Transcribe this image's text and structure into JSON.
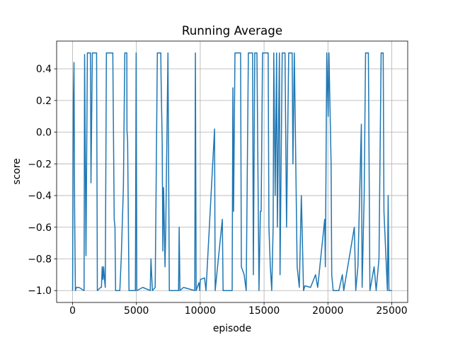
{
  "chart_data": {
    "type": "line",
    "title": "Running Average",
    "x_label": "episode",
    "y_label": "score",
    "x": [
      0,
      60,
      110,
      160,
      220,
      300,
      500,
      900,
      940,
      1050,
      1160,
      1400,
      1440,
      1550,
      1880,
      1940,
      2200,
      2260,
      2320,
      2380,
      2430,
      2500,
      2560,
      2650,
      3150,
      3260,
      3320,
      3370,
      3700,
      3810,
      3980,
      4090,
      4250,
      4260,
      4310,
      4420,
      4920,
      4980,
      5030,
      5500,
      6080,
      6140,
      6250,
      6470,
      6640,
      6910,
      6930,
      7020,
      7070,
      7130,
      7240,
      7300,
      7470,
      7580,
      8300,
      8350,
      8410,
      8690,
      9570,
      9620,
      9680,
      9900,
      9960,
      10010,
      10340,
      10450,
      11120,
      11170,
      11730,
      11790,
      12500,
      12555,
      12610,
      12720,
      13160,
      13220,
      13440,
      13600,
      13770,
      14100,
      14160,
      14270,
      14440,
      14600,
      14710,
      14770,
      14880,
      15320,
      15380,
      15490,
      15600,
      15710,
      15760,
      15870,
      15980,
      16040,
      16200,
      16250,
      16420,
      16640,
      16760,
      16930,
      17200,
      17260,
      17370,
      17590,
      17760,
      17920,
      18090,
      18200,
      18640,
      19030,
      19200,
      19750,
      19800,
      19910,
      20020,
      20080,
      20250,
      20300,
      20410,
      20860,
      21130,
      21240,
      22070,
      22180,
      22350,
      22620,
      22680,
      22840,
      22950,
      23170,
      23290,
      23620,
      23780,
      24000,
      24170,
      24330,
      24390,
      24660,
      24720,
      24780,
      25000
    ],
    "series": [
      {
        "color": "#1f77b4",
        "values": [
          -1,
          0.2,
          0.44,
          -0.5,
          -1,
          -0.98,
          -0.98,
          -1,
          0.49,
          -0.78,
          0.5,
          0.5,
          -0.32,
          0.5,
          0.5,
          -1,
          -0.98,
          -0.98,
          -0.85,
          -0.93,
          -0.85,
          -0.93,
          -0.98,
          0.5,
          0.5,
          -0.55,
          -0.6,
          -1,
          -1,
          -0.8,
          -0.35,
          0.5,
          0.5,
          0.01,
          -0.05,
          -1,
          -1,
          0.5,
          -1,
          -0.98,
          -1,
          -0.8,
          -1,
          -0.98,
          0.5,
          0.5,
          0.35,
          -0.07,
          -0.75,
          -0.35,
          -0.85,
          -0.6,
          0.5,
          -1,
          -1,
          -0.6,
          -1,
          -0.98,
          -1,
          0.5,
          -1,
          -0.95,
          -1,
          -0.93,
          -0.92,
          -1,
          0.02,
          -1,
          -0.55,
          -1,
          -1,
          0.28,
          -0.5,
          0.5,
          0.5,
          -0.85,
          -0.9,
          -1,
          0.5,
          0.5,
          -0.9,
          0.5,
          0.5,
          -1,
          -0.5,
          -0.5,
          0.5,
          0.5,
          -0.6,
          -0.85,
          -1,
          -0.6,
          0.5,
          -0.4,
          0.5,
          -0.6,
          0.5,
          -0.9,
          0.5,
          0.5,
          -0.6,
          0.5,
          0.5,
          -0.2,
          0.5,
          -0.85,
          -0.98,
          -0.4,
          -1,
          -0.97,
          -0.98,
          -0.9,
          -0.98,
          -0.55,
          -0.85,
          0.5,
          0.1,
          0.5,
          -0.2,
          -0.9,
          -1,
          -1,
          -0.9,
          -1,
          -0.6,
          -1,
          -0.85,
          0.05,
          -0.98,
          -0.4,
          0.5,
          0.5,
          -1,
          -0.85,
          -1,
          -0.8,
          0.5,
          0.5,
          -0.5,
          -1,
          -0.4,
          -1,
          -1
        ]
      }
    ],
    "xlim": [
      -1250,
      26250
    ],
    "xticks": [
      0,
      5000,
      10000,
      15000,
      20000,
      25000
    ],
    "ylim": [
      -1.075,
      0.575
    ],
    "yticks": [
      {
        "value": -1,
        "label": "−1.0"
      },
      {
        "value": -0.8,
        "label": "−0.8"
      },
      {
        "value": -0.6,
        "label": "−0.6"
      },
      {
        "value": -0.4,
        "label": "−0.4"
      },
      {
        "value": -0.2,
        "label": "−0.2"
      },
      {
        "value": 0,
        "label": "0.0"
      },
      0.2,
      0.4
    ],
    "grid": true
  }
}
